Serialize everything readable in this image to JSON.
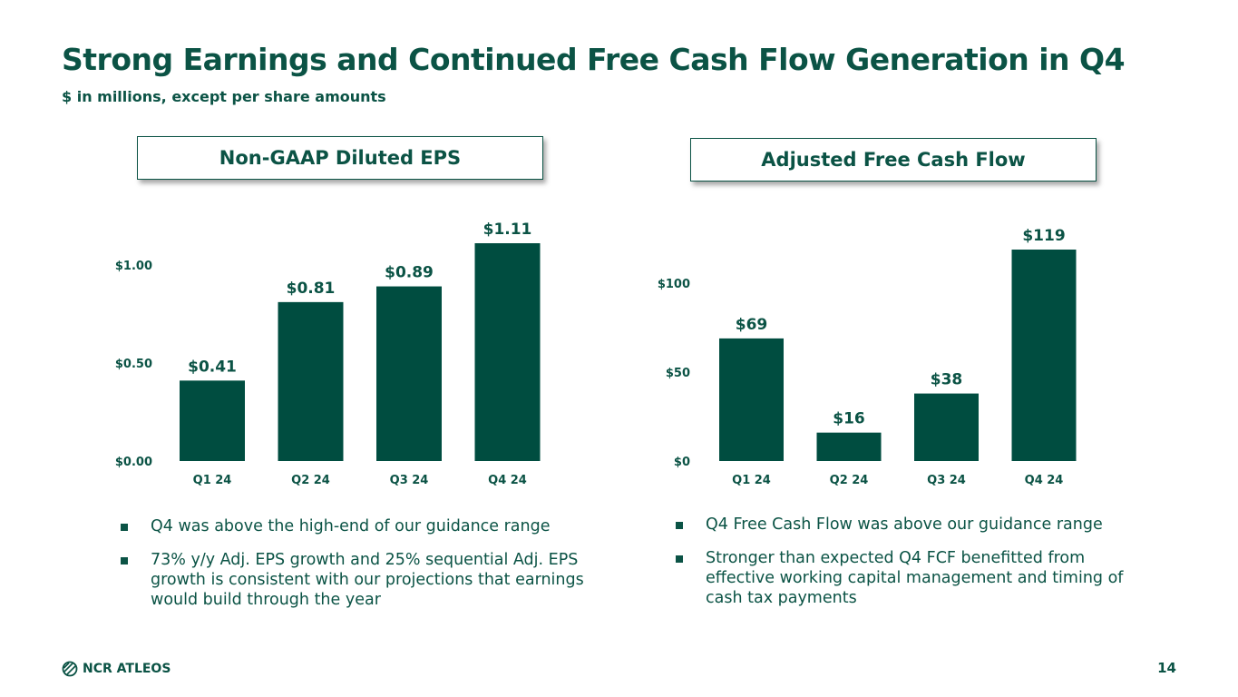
{
  "header": {
    "title": "Strong Earnings and Continued Free Cash Flow Generation in Q4",
    "subtitle": "$ in millions, except per share amounts"
  },
  "panels": {
    "left_title": "Non-GAAP Diluted EPS",
    "right_title": "Adjusted Free Cash Flow"
  },
  "chart_data": [
    {
      "type": "bar",
      "title": "Non-GAAP Diluted EPS",
      "categories": [
        "Q1 24",
        "Q2 24",
        "Q3 24",
        "Q4 24"
      ],
      "values": [
        0.41,
        0.81,
        0.89,
        1.11
      ],
      "data_labels": [
        "$0.41",
        "$0.81",
        "$0.89",
        "$1.11"
      ],
      "yticks": [
        0,
        0.5,
        1.0
      ],
      "ytick_labels": [
        "$0.00",
        "$0.50",
        "$1.00"
      ],
      "ylim": [
        0,
        1.11
      ],
      "color": "#004d40"
    },
    {
      "type": "bar",
      "title": "Adjusted Free Cash Flow",
      "categories": [
        "Q1 24",
        "Q2 24",
        "Q3 24",
        "Q4 24"
      ],
      "values": [
        69,
        16,
        38,
        119
      ],
      "data_labels": [
        "$69",
        "$16",
        "$38",
        "$119"
      ],
      "yticks": [
        0,
        50,
        100
      ],
      "ytick_labels": [
        "$0",
        "$50",
        "$100"
      ],
      "ylim": [
        0,
        119
      ],
      "color": "#004d40"
    }
  ],
  "bullets_left": [
    "Q4 was above the high-end of our guidance range",
    "73% y/y Adj. EPS growth and 25% sequential Adj. EPS growth is consistent with our projections that earnings would build through the year"
  ],
  "bullets_right": [
    "Q4 Free Cash Flow was above our guidance range",
    "Stronger than expected Q4 FCF benefitted from effective working capital management and timing of cash tax payments"
  ],
  "footer": {
    "logo_text": "NCR ATLEOS",
    "logo_icon": "globe-icon",
    "page_number": "14"
  }
}
